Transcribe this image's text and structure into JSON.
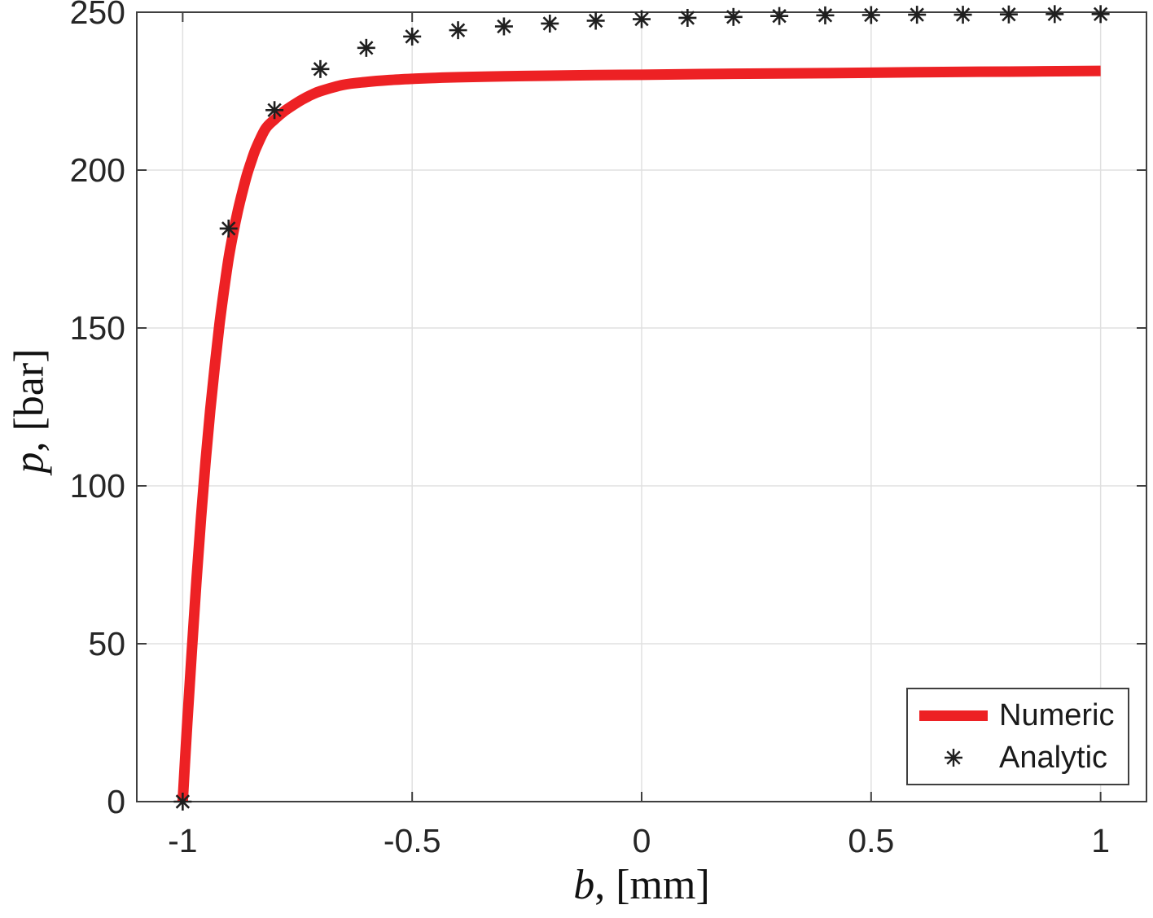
{
  "chart_data": {
    "type": "line",
    "title": "",
    "xlabel": "b, [mm]",
    "xlabel_var": "b",
    "xlabel_rest": ", [mm]",
    "ylabel": "p, [bar]",
    "ylabel_var": "p",
    "ylabel_rest": ", [bar]",
    "xlim": [
      -1.1,
      1.1
    ],
    "ylim": [
      0,
      250
    ],
    "xticks": [
      -1,
      -0.5,
      0,
      0.5,
      1
    ],
    "xtick_labels": [
      "-1",
      "-0.5",
      "0",
      "0.5",
      "1"
    ],
    "yticks": [
      0,
      50,
      100,
      150,
      200,
      250
    ],
    "ytick_labels": [
      "0",
      "50",
      "100",
      "150",
      "200",
      "250"
    ],
    "grid": true,
    "legend_position": "southeast",
    "series": [
      {
        "name": "Numeric",
        "type": "line",
        "color": "#ed2124",
        "line_width": 13,
        "x": [
          -1,
          -0.99,
          -0.98,
          -0.97,
          -0.96,
          -0.95,
          -0.94,
          -0.93,
          -0.92,
          -0.91,
          -0.9,
          -0.89,
          -0.88,
          -0.87,
          -0.86,
          -0.85,
          -0.84,
          -0.82,
          -0.8,
          -0.78,
          -0.76,
          -0.74,
          -0.72,
          -0.7,
          -0.65,
          -0.6,
          -0.55,
          -0.5,
          -0.45,
          -0.4,
          -0.3,
          -0.2,
          -0.1,
          0,
          0.2,
          0.4,
          0.6,
          0.8,
          1
        ],
        "y": [
          0,
          25,
          48,
          70,
          90,
          108,
          124,
          138,
          151,
          162,
          172,
          180,
          187,
          193,
          198.5,
          203,
          207,
          213,
          216,
          218.5,
          220.5,
          222.3,
          223.8,
          225,
          227,
          227.9,
          228.5,
          228.9,
          229.2,
          229.4,
          229.7,
          229.9,
          230.1,
          230.2,
          230.5,
          230.7,
          231,
          231.2,
          231.4
        ]
      },
      {
        "name": "Analytic",
        "type": "scatter",
        "marker": "asterisk",
        "color": "#1f1f1f",
        "marker_size": 11,
        "x": [
          -1,
          -0.9,
          -0.8,
          -0.7,
          -0.6,
          -0.5,
          -0.4,
          -0.3,
          -0.2,
          -0.1,
          0,
          0.1,
          0.2,
          0.3,
          0.4,
          0.5,
          0.6,
          0.7,
          0.8,
          0.9,
          1
        ],
        "y": [
          0,
          181.5,
          219,
          232,
          238.7,
          242.3,
          244.3,
          245.5,
          246.4,
          247.3,
          247.8,
          248.2,
          248.5,
          248.8,
          249,
          249.1,
          249.2,
          249.2,
          249.3,
          249.4,
          249.4
        ]
      }
    ]
  },
  "style": {
    "background": "#ffffff",
    "axis_color": "#3f3f3f",
    "grid_color": "#e0e0e0",
    "tick_label_color": "#262626",
    "axis_label_color": "#111111",
    "legend_border_color": "#3f3f3f"
  }
}
